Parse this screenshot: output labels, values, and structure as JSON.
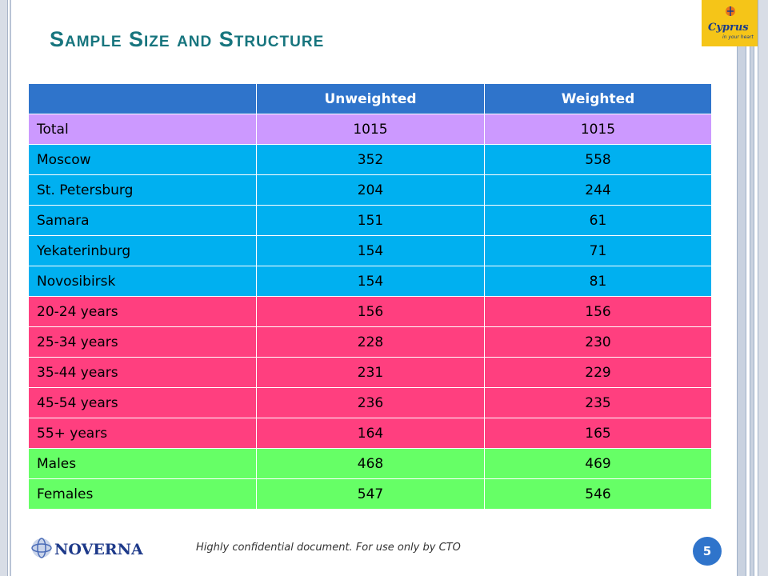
{
  "title": "Sample Size and Structure",
  "table": {
    "headers": [
      "",
      "Unweighted",
      "Weighted"
    ],
    "rows": [
      {
        "label": "Total",
        "unweighted": "1015",
        "weighted": "1015",
        "color": "#cc99ff"
      },
      {
        "label": "Moscow",
        "unweighted": "352",
        "weighted": "558",
        "color": "#00b0f0"
      },
      {
        "label": "St. Petersburg",
        "unweighted": "204",
        "weighted": "244",
        "color": "#00b0f0"
      },
      {
        "label": "Samara",
        "unweighted": "151",
        "weighted": "61",
        "color": "#00b0f0"
      },
      {
        "label": "Yekaterinburg",
        "unweighted": "154",
        "weighted": "71",
        "color": "#00b0f0"
      },
      {
        "label": "Novosibirsk",
        "unweighted": "154",
        "weighted": "81",
        "color": "#00b0f0"
      },
      {
        "label": "20-24 years",
        "unweighted": "156",
        "weighted": "156",
        "color": "#ff3f7f"
      },
      {
        "label": "25-34 years",
        "unweighted": "228",
        "weighted": "230",
        "color": "#ff3f7f"
      },
      {
        "label": "35-44 years",
        "unweighted": "231",
        "weighted": "229",
        "color": "#ff3f7f"
      },
      {
        "label": "45-54 years",
        "unweighted": "236",
        "weighted": "235",
        "color": "#ff3f7f"
      },
      {
        "label": "55+ years",
        "unweighted": "164",
        "weighted": "165",
        "color": "#ff3f7f"
      },
      {
        "label": "Males",
        "unweighted": "468",
        "weighted": "469",
        "color": "#66ff66"
      },
      {
        "label": "Females",
        "unweighted": "547",
        "weighted": "546",
        "color": "#66ff66"
      }
    ]
  },
  "logos": {
    "cyprus_line1": "Cyprus",
    "cyprus_line2": "in your heart",
    "noverna": "NOVERNA"
  },
  "footer": {
    "confidential": "Highly confidential document. For use only by CTO",
    "page_number": "5"
  }
}
